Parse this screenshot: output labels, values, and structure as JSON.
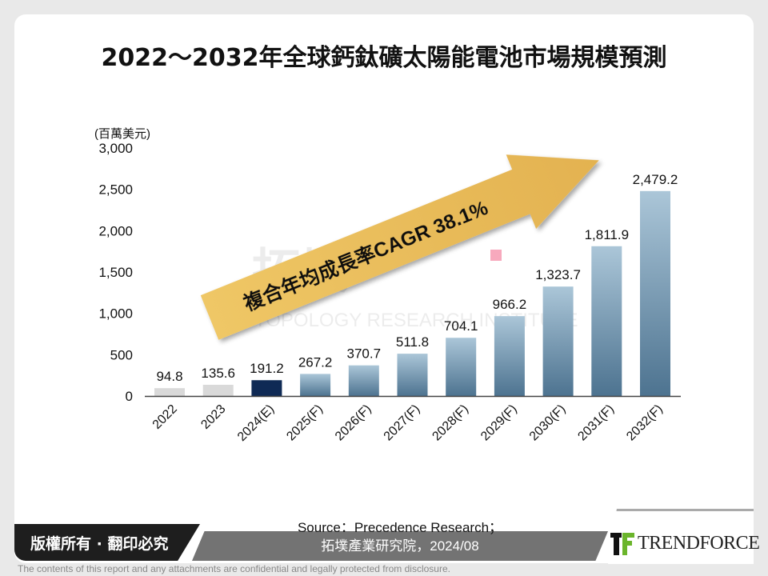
{
  "title": "2022～2032年全球鈣鈦礦太陽能電池市場規模預測",
  "chart_data": {
    "type": "bar",
    "title": "2022～2032年全球鈣鈦礦太陽能電池市場規模預測",
    "ylabel": "(百萬美元)",
    "xlabel": "",
    "ylim": [
      0,
      3000
    ],
    "yticks": [
      0,
      500,
      1000,
      1500,
      2000,
      2500,
      3000
    ],
    "ytick_labels": [
      "0",
      "500",
      "1,000",
      "1,500",
      "2,000",
      "2,500",
      "3,000"
    ],
    "grid": false,
    "categories": [
      "2022",
      "2023",
      "2024(E)",
      "2025(F)",
      "2026(F)",
      "2027(F)",
      "2028(F)",
      "2029(F)",
      "2030(F)",
      "2031(F)",
      "2032(F)"
    ],
    "values": [
      94.8,
      135.6,
      191.2,
      267.2,
      370.7,
      511.8,
      704.1,
      966.2,
      1323.7,
      1811.9,
      2479.2
    ],
    "value_labels": [
      "94.8",
      "135.6",
      "191.2",
      "267.2",
      "370.7",
      "511.8",
      "704.1",
      "966.2",
      "1,323.7",
      "1,811.9",
      "2,479.2"
    ],
    "bar_kinds": [
      "actual",
      "actual",
      "estimate",
      "forecast",
      "forecast",
      "forecast",
      "forecast",
      "forecast",
      "forecast",
      "forecast",
      "forecast"
    ],
    "annotation": "複合年均成長率CAGR 38.1%",
    "colors": {
      "actual": "#d9d9d9",
      "estimate": "#0f2a55",
      "forecast_top": "#a9c4d6",
      "forecast_bottom": "#4f7591",
      "arrow": "#e9bd5a"
    }
  },
  "watermark": {
    "cn": "拓墣",
    "en": "TOPOLOGY RESEARCH INSTITUTE"
  },
  "footer": {
    "copyright": "版權所有 · 翻印必究",
    "source_line1": "Source：Precedence Research；",
    "source_line2": "拓墣產業研究院，2024/08",
    "logo_text": "TRENDFORCE",
    "disclaimer": "The contents of this report and any attachments are confidential and legally protected from disclosure."
  }
}
